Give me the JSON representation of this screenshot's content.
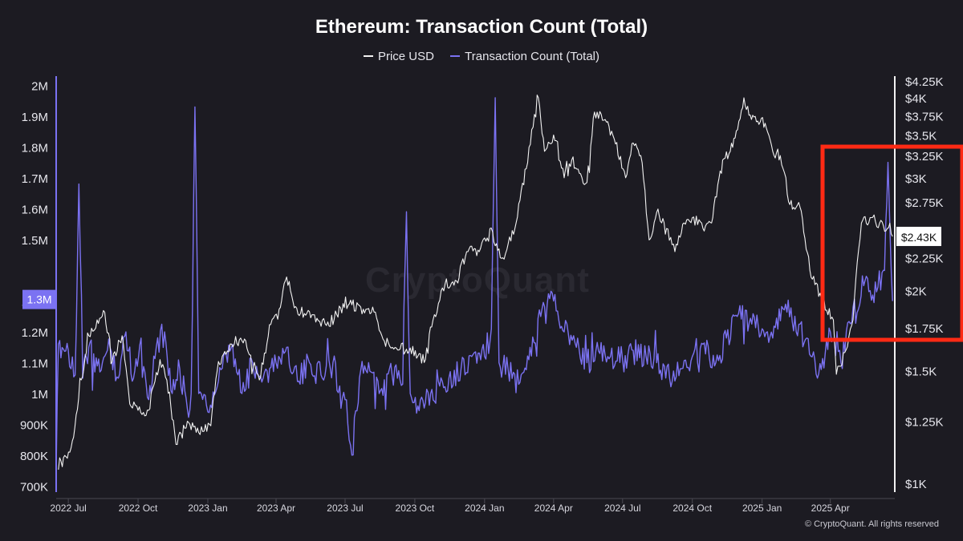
{
  "chart_data": {
    "type": "line",
    "title": "Ethereum: Transaction Count (Total)",
    "legend_position": "top-center",
    "grid": false,
    "x_ticks": [
      "2022 Jul",
      "2022 Oct",
      "2023 Jan",
      "2023 Apr",
      "2023 Jul",
      "2023 Oct",
      "2024 Jan",
      "2024 Apr",
      "2024 Jul",
      "2024 Oct",
      "2025 Jan",
      "2025 Apr"
    ],
    "x_range": [
      "2022-06-15",
      "2025-06-25"
    ],
    "y_left": {
      "range": [
        680000,
        2030000
      ],
      "ticks": [
        2000000,
        1900000,
        1800000,
        1700000,
        1600000,
        1500000,
        1300000,
        1200000,
        1100000,
        1000000,
        900000,
        800000,
        700000
      ],
      "tick_labels": [
        "2M",
        "1.9M",
        "1.8M",
        "1.7M",
        "1.6M",
        "1.5M",
        "1.3M",
        "1.2M",
        "1.1M",
        "1M",
        "900K",
        "800K",
        "700K"
      ]
    },
    "y_right": {
      "scale": "log",
      "range": [
        1000,
        4250
      ],
      "ticks": [
        4250,
        4000,
        3750,
        3500,
        3250,
        3000,
        2750,
        2250,
        2000,
        1750,
        1500,
        1250,
        1000
      ],
      "tick_labels": [
        "$4.25K",
        "$4K",
        "$3.75K",
        "$3.5K",
        "$3.25K",
        "$3K",
        "$2.75K",
        "$2.25K",
        "$2K",
        "$1.75K",
        "$1.5K",
        "$1.25K",
        "$1K"
      ]
    },
    "current_value_labels": {
      "left": "1.3M",
      "right": "$2.43K"
    },
    "series": [
      {
        "name": "Price USD",
        "color": "#f2f2f2",
        "axis": "right",
        "points": [
          [
            "2022-06-18",
            1050
          ],
          [
            "2022-06-28",
            1100
          ],
          [
            "2022-07-08",
            1180
          ],
          [
            "2022-07-18",
            1450
          ],
          [
            "2022-07-28",
            1700
          ],
          [
            "2022-08-08",
            1800
          ],
          [
            "2022-08-18",
            1850
          ],
          [
            "2022-08-28",
            1550
          ],
          [
            "2022-09-10",
            1700
          ],
          [
            "2022-09-20",
            1330
          ],
          [
            "2022-10-01",
            1300
          ],
          [
            "2022-10-15",
            1300
          ],
          [
            "2022-10-30",
            1560
          ],
          [
            "2022-11-08",
            1450
          ],
          [
            "2022-11-20",
            1150
          ],
          [
            "2022-12-05",
            1250
          ],
          [
            "2022-12-20",
            1200
          ],
          [
            "2023-01-05",
            1230
          ],
          [
            "2023-01-15",
            1550
          ],
          [
            "2023-01-25",
            1590
          ],
          [
            "2023-02-05",
            1650
          ],
          [
            "2023-02-20",
            1670
          ],
          [
            "2023-03-10",
            1450
          ],
          [
            "2023-03-25",
            1770
          ],
          [
            "2023-04-05",
            1870
          ],
          [
            "2023-04-15",
            2100
          ],
          [
            "2023-04-25",
            1880
          ],
          [
            "2023-05-10",
            1830
          ],
          [
            "2023-05-25",
            1810
          ],
          [
            "2023-06-10",
            1760
          ],
          [
            "2023-06-25",
            1880
          ],
          [
            "2023-07-10",
            1900
          ],
          [
            "2023-07-25",
            1870
          ],
          [
            "2023-08-10",
            1850
          ],
          [
            "2023-08-20",
            1680
          ],
          [
            "2023-09-05",
            1630
          ],
          [
            "2023-09-20",
            1620
          ],
          [
            "2023-10-05",
            1580
          ],
          [
            "2023-10-15",
            1560
          ],
          [
            "2023-10-25",
            1800
          ],
          [
            "2023-11-10",
            2050
          ],
          [
            "2023-11-25",
            2070
          ],
          [
            "2023-12-10",
            2300
          ],
          [
            "2023-12-25",
            2300
          ],
          [
            "2024-01-08",
            2500
          ],
          [
            "2024-01-15",
            2350
          ],
          [
            "2024-01-25",
            2250
          ],
          [
            "2024-02-10",
            2500
          ],
          [
            "2024-02-25",
            3100
          ],
          [
            "2024-03-05",
            3600
          ],
          [
            "2024-03-12",
            4000
          ],
          [
            "2024-03-20",
            3300
          ],
          [
            "2024-04-01",
            3500
          ],
          [
            "2024-04-15",
            3000
          ],
          [
            "2024-04-25",
            3200
          ],
          [
            "2024-05-05",
            3050
          ],
          [
            "2024-05-15",
            2950
          ],
          [
            "2024-05-25",
            3800
          ],
          [
            "2024-06-08",
            3700
          ],
          [
            "2024-06-20",
            3450
          ],
          [
            "2024-07-05",
            3000
          ],
          [
            "2024-07-15",
            3400
          ],
          [
            "2024-07-25",
            3250
          ],
          [
            "2024-08-05",
            2400
          ],
          [
            "2024-08-15",
            2650
          ],
          [
            "2024-08-28",
            2500
          ],
          [
            "2024-09-08",
            2300
          ],
          [
            "2024-09-20",
            2550
          ],
          [
            "2024-10-01",
            2600
          ],
          [
            "2024-10-15",
            2500
          ],
          [
            "2024-10-28",
            2600
          ],
          [
            "2024-11-10",
            3200
          ],
          [
            "2024-11-20",
            3300
          ],
          [
            "2024-11-28",
            3550
          ],
          [
            "2024-12-08",
            4000
          ],
          [
            "2024-12-18",
            3700
          ],
          [
            "2025-01-05",
            3650
          ],
          [
            "2025-01-15",
            3300
          ],
          [
            "2025-01-25",
            3250
          ],
          [
            "2025-02-05",
            2750
          ],
          [
            "2025-02-20",
            2700
          ],
          [
            "2025-03-05",
            2150
          ],
          [
            "2025-03-20",
            1950
          ],
          [
            "2025-04-05",
            1800
          ],
          [
            "2025-04-09",
            1480
          ],
          [
            "2025-04-20",
            1600
          ],
          [
            "2025-05-01",
            1800
          ],
          [
            "2025-05-12",
            2550
          ],
          [
            "2025-05-25",
            2600
          ],
          [
            "2025-06-05",
            2550
          ],
          [
            "2025-06-15",
            2500
          ],
          [
            "2025-06-22",
            2430
          ]
        ]
      },
      {
        "name": "Transaction Count (Total)",
        "color": "#7b72f2",
        "axis": "left",
        "points": [
          [
            "2022-06-15",
            750000
          ],
          [
            "2022-06-18",
            1160000
          ],
          [
            "2022-07-01",
            1140000
          ],
          [
            "2022-07-10",
            1060000
          ],
          [
            "2022-07-15",
            1680000
          ],
          [
            "2022-07-20",
            1050000
          ],
          [
            "2022-07-28",
            1150000
          ],
          [
            "2022-08-05",
            1070000
          ],
          [
            "2022-08-15",
            1100000
          ],
          [
            "2022-08-25",
            1150000
          ],
          [
            "2022-09-05",
            1050000
          ],
          [
            "2022-09-15",
            1200000
          ],
          [
            "2022-09-25",
            1050000
          ],
          [
            "2022-10-05",
            1180000
          ],
          [
            "2022-10-15",
            980000
          ],
          [
            "2022-10-25",
            1150000
          ],
          [
            "2022-11-05",
            1200000
          ],
          [
            "2022-11-15",
            1000000
          ],
          [
            "2022-11-25",
            1080000
          ],
          [
            "2022-12-05",
            950000
          ],
          [
            "2022-12-10",
            1000000
          ],
          [
            "2022-12-15",
            1930000
          ],
          [
            "2022-12-20",
            1000000
          ],
          [
            "2023-01-01",
            940000
          ],
          [
            "2023-01-15",
            1040000
          ],
          [
            "2023-02-01",
            1150000
          ],
          [
            "2023-02-15",
            1000000
          ],
          [
            "2023-03-01",
            1100000
          ],
          [
            "2023-03-15",
            1050000
          ],
          [
            "2023-04-01",
            1100000
          ],
          [
            "2023-04-15",
            1150000
          ],
          [
            "2023-05-01",
            1040000
          ],
          [
            "2023-05-15",
            1100000
          ],
          [
            "2023-06-01",
            1050000
          ],
          [
            "2023-06-15",
            1100000
          ],
          [
            "2023-07-01",
            980000
          ],
          [
            "2023-07-10",
            800000
          ],
          [
            "2023-07-20",
            1050000
          ],
          [
            "2023-08-01",
            1100000
          ],
          [
            "2023-08-15",
            1000000
          ],
          [
            "2023-09-01",
            1060000
          ],
          [
            "2023-09-15",
            1030000
          ],
          [
            "2023-09-20",
            1590000
          ],
          [
            "2023-09-25",
            1000000
          ],
          [
            "2023-10-05",
            960000
          ],
          [
            "2023-10-15",
            970000
          ],
          [
            "2023-11-01",
            1040000
          ],
          [
            "2023-11-15",
            1050000
          ],
          [
            "2023-12-01",
            1080000
          ],
          [
            "2023-12-15",
            1120000
          ],
          [
            "2024-01-01",
            1120000
          ],
          [
            "2024-01-10",
            1210000
          ],
          [
            "2024-01-15",
            1960000
          ],
          [
            "2024-01-20",
            1100000
          ],
          [
            "2024-02-01",
            1080000
          ],
          [
            "2024-02-15",
            1030000
          ],
          [
            "2024-03-01",
            1150000
          ],
          [
            "2024-03-15",
            1250000
          ],
          [
            "2024-04-01",
            1300000
          ],
          [
            "2024-04-15",
            1200000
          ],
          [
            "2024-05-01",
            1150000
          ],
          [
            "2024-05-15",
            1100000
          ],
          [
            "2024-06-01",
            1130000
          ],
          [
            "2024-06-15",
            1120000
          ],
          [
            "2024-07-01",
            1110000
          ],
          [
            "2024-07-15",
            1140000
          ],
          [
            "2024-08-01",
            1120000
          ],
          [
            "2024-08-15",
            1100000
          ],
          [
            "2024-09-01",
            1050000
          ],
          [
            "2024-09-15",
            1080000
          ],
          [
            "2024-10-01",
            1120000
          ],
          [
            "2024-10-15",
            1160000
          ],
          [
            "2024-11-01",
            1100000
          ],
          [
            "2024-11-15",
            1180000
          ],
          [
            "2024-12-01",
            1260000
          ],
          [
            "2024-12-15",
            1230000
          ],
          [
            "2025-01-01",
            1210000
          ],
          [
            "2025-01-15",
            1180000
          ],
          [
            "2025-02-01",
            1290000
          ],
          [
            "2025-02-15",
            1200000
          ],
          [
            "2025-03-01",
            1180000
          ],
          [
            "2025-03-15",
            1050000
          ],
          [
            "2025-04-01",
            1200000
          ],
          [
            "2025-04-15",
            1100000
          ],
          [
            "2025-05-01",
            1280000
          ],
          [
            "2025-05-15",
            1350000
          ],
          [
            "2025-06-01",
            1330000
          ],
          [
            "2025-06-10",
            1400000
          ],
          [
            "2025-06-16",
            1750000
          ],
          [
            "2025-06-22",
            1300000
          ]
        ]
      }
    ]
  },
  "ui": {
    "copyright": "© CryptoQuant. All rights reserved",
    "watermark": "CryptoQuant",
    "highlight_color": "#ff2a14"
  }
}
